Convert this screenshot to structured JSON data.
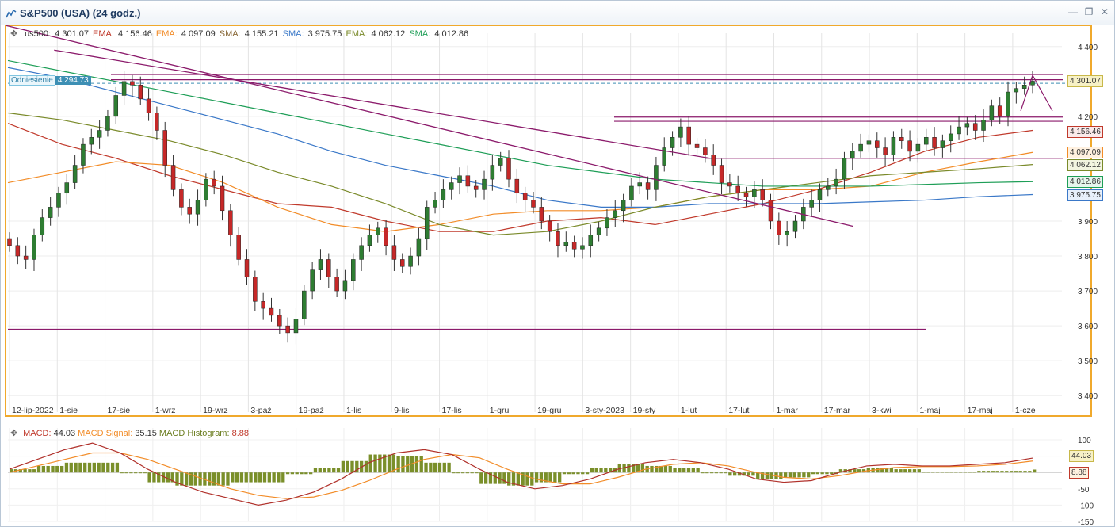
{
  "window": {
    "title": "S&P500 (USA) (24 godz.)",
    "controls": [
      "minimize-icon",
      "restore-icon",
      "close-icon"
    ]
  },
  "legend": {
    "symbol": "us500:",
    "symbol_value": "4 301.07",
    "ema1_label": "EMA:",
    "ema1_value": "4 156.46",
    "ema2_label": "EMA:",
    "ema2_value": "4 097.09",
    "sma1_label": "SMA:",
    "sma1_value": "4 155.21",
    "sma2_label": "SMA:",
    "sma2_value": "3 975.75",
    "ema3_label": "EMA:",
    "ema3_value": "4 062.12",
    "sma3_label": "SMA:",
    "sma3_value": "4 012.86"
  },
  "reference": {
    "label": "Odniesienie",
    "value": "4 294.73"
  },
  "colors": {
    "accent_border": "#f0a92c",
    "bull": "#2e7d32",
    "bear": "#c62828",
    "trendline": "#8b1a6b",
    "ema_red": "#c0392b",
    "ema_orange": "#f28c28",
    "sma_blue": "#3a78c8",
    "ema_olive": "#7a8a2a",
    "sma_green": "#1e9e57",
    "sma_brown": "#8a6a3a"
  },
  "price_badges": [
    {
      "value": "4 301.07",
      "price": 4301.07,
      "bg": "#f7f1c6",
      "fg": "#333",
      "border": "#c8b84a"
    },
    {
      "value": "4 156.46",
      "price": 4156.46,
      "bg": "#fbeaea",
      "fg": "#333",
      "border": "#c0392b"
    },
    {
      "value": "4 097.09",
      "price": 4097.09,
      "bg": "#fff1e0",
      "fg": "#333",
      "border": "#f28c28"
    },
    {
      "value": "4 062.12",
      "price": 4062.12,
      "bg": "#f3f5e0",
      "fg": "#333",
      "border": "#7a8a2a"
    },
    {
      "value": "4 012.86",
      "price": 4012.86,
      "bg": "#e6f6ec",
      "fg": "#333",
      "border": "#1e9e57"
    },
    {
      "value": "3 975.75",
      "price": 3975.75,
      "bg": "#e8f0fb",
      "fg": "#333",
      "border": "#3a78c8"
    }
  ],
  "chart_data": [
    {
      "type": "candlestick",
      "title": "S&P500 (USA) (24 godz.)",
      "ylim": [
        3380,
        4420
      ],
      "y_ticks": [
        "4 400",
        "4 200",
        "3 900",
        "3 800",
        "3 700",
        "3 600",
        "3 500",
        "3 400"
      ],
      "x_tick_labels": [
        "12-lip-2022",
        "1-sie",
        "17-sie",
        "1-wrz",
        "19-wrz",
        "3-paź",
        "19-paź",
        "1-lis",
        "9-lis",
        "17-lis",
        "1-gru",
        "19-gru",
        "3-sty-2023",
        "19-sty",
        "1-lut",
        "17-lut",
        "1-mar",
        "17-mar",
        "3-kwi",
        "1-maj",
        "17-maj",
        "1-cze"
      ],
      "close_series": [
        3830,
        3800,
        3790,
        3860,
        3910,
        3940,
        3980,
        4010,
        4060,
        4120,
        4140,
        4160,
        4200,
        4260,
        4300,
        4290,
        4250,
        4210,
        4160,
        4060,
        3990,
        3940,
        3920,
        3960,
        4020,
        4000,
        3930,
        3860,
        3790,
        3740,
        3670,
        3650,
        3630,
        3600,
        3580,
        3620,
        3700,
        3760,
        3790,
        3740,
        3700,
        3730,
        3790,
        3830,
        3860,
        3880,
        3830,
        3790,
        3770,
        3800,
        3850,
        3940,
        3960,
        3990,
        4010,
        4030,
        4000,
        3990,
        4020,
        4060,
        4080,
        4020,
        3980,
        3960,
        3940,
        3900,
        3870,
        3830,
        3840,
        3820,
        3830,
        3860,
        3880,
        3910,
        3930,
        3960,
        4000,
        4010,
        3990,
        4060,
        4110,
        4140,
        4170,
        4120,
        4110,
        4090,
        4060,
        4010,
        4000,
        3980,
        3970,
        3990,
        3960,
        3900,
        3860,
        3870,
        3900,
        3940,
        3960,
        3990,
        4000,
        4020,
        4080,
        4100,
        4120,
        4130,
        4110,
        4090,
        4140,
        4130,
        4100,
        4120,
        4140,
        4110,
        4130,
        4150,
        4170,
        4180,
        4160,
        4190,
        4230,
        4200,
        4270,
        4280,
        4290,
        4301
      ],
      "series": [
        {
          "name": "EMA",
          "value_label": "4 156.46",
          "color": "#c0392b",
          "values": [
            4180,
            4120,
            4080,
            4030,
            3990,
            3950,
            3940,
            3900,
            3870,
            3870,
            3900,
            3910,
            3890,
            3920,
            3950,
            3990,
            4040,
            4100,
            4140,
            4160
          ]
        },
        {
          "name": "EMA",
          "value_label": "4 097.09",
          "color": "#f28c28",
          "values": [
            4010,
            4040,
            4070,
            4060,
            4010,
            3940,
            3890,
            3870,
            3890,
            3920,
            3930,
            3930,
            3940,
            3970,
            3990,
            3990,
            4000,
            4040,
            4070,
            4097
          ]
        },
        {
          "name": "SMA",
          "value_label": "3 975.75",
          "color": "#3a78c8",
          "values": [
            4340,
            4310,
            4270,
            4230,
            4190,
            4150,
            4100,
            4060,
            4030,
            4000,
            3960,
            3940,
            3940,
            3950,
            3950,
            3950,
            3955,
            3960,
            3970,
            3976
          ]
        },
        {
          "name": "EMA",
          "value_label": "4 062.12",
          "color": "#7a8a2a",
          "values": [
            4210,
            4190,
            4160,
            4130,
            4090,
            4040,
            4000,
            3950,
            3890,
            3860,
            3870,
            3900,
            3940,
            3970,
            3990,
            4010,
            4030,
            4040,
            4050,
            4062
          ]
        },
        {
          "name": "SMA",
          "value_label": "4 012.86",
          "color": "#1e9e57",
          "values": [
            4360,
            4330,
            4300,
            4270,
            4240,
            4210,
            4180,
            4150,
            4120,
            4090,
            4060,
            4040,
            4020,
            4010,
            4000,
            4000,
            4000,
            4005,
            4010,
            4013
          ]
        }
      ],
      "horizontal_levels": [
        4320,
        4305,
        4198,
        4186,
        4080,
        3590
      ],
      "trendlines": [
        {
          "from": [
            "12-lip-2022",
            4460
          ],
          "to": [
            "17-mar",
            3885
          ]
        },
        {
          "from": [
            "1-sie",
            4390
          ],
          "to": [
            "1-lut",
            4080
          ]
        }
      ],
      "reference_level": 4294.73,
      "grid": true
    },
    {
      "type": "bar",
      "title": "MACD",
      "ylim": [
        -150,
        100
      ],
      "y_ticks": [
        "100",
        "50",
        "0",
        "-50",
        "-100",
        "-150"
      ],
      "macd_label": "MACD:",
      "macd_value": "44.03",
      "signal_label": "MACD Signal:",
      "signal_value": "35.15",
      "hist_label": "MACD Histogram:",
      "hist_value": "8.88",
      "macd_series": [
        10,
        40,
        70,
        90,
        60,
        10,
        -30,
        -60,
        -80,
        -100,
        -85,
        -60,
        -20,
        30,
        60,
        70,
        55,
        10,
        -30,
        -50,
        -40,
        -20,
        10,
        30,
        40,
        30,
        10,
        -20,
        -30,
        -25,
        0,
        20,
        25,
        20,
        20,
        25,
        30,
        44
      ],
      "signal_series": [
        0,
        20,
        40,
        60,
        60,
        40,
        10,
        -20,
        -50,
        -70,
        -80,
        -75,
        -55,
        -25,
        10,
        40,
        55,
        45,
        10,
        -20,
        -35,
        -35,
        -15,
        10,
        25,
        30,
        20,
        0,
        -15,
        -20,
        -10,
        5,
        15,
        18,
        18,
        20,
        25,
        35
      ],
      "hist_series": [
        10,
        20,
        30,
        30,
        0,
        -30,
        -40,
        -40,
        -30,
        -30,
        -5,
        15,
        35,
        55,
        50,
        30,
        0,
        -35,
        -40,
        -30,
        -5,
        15,
        25,
        20,
        15,
        0,
        -10,
        -20,
        -15,
        -5,
        10,
        15,
        10,
        2,
        2,
        5,
        5,
        9
      ],
      "grid": true
    }
  ]
}
